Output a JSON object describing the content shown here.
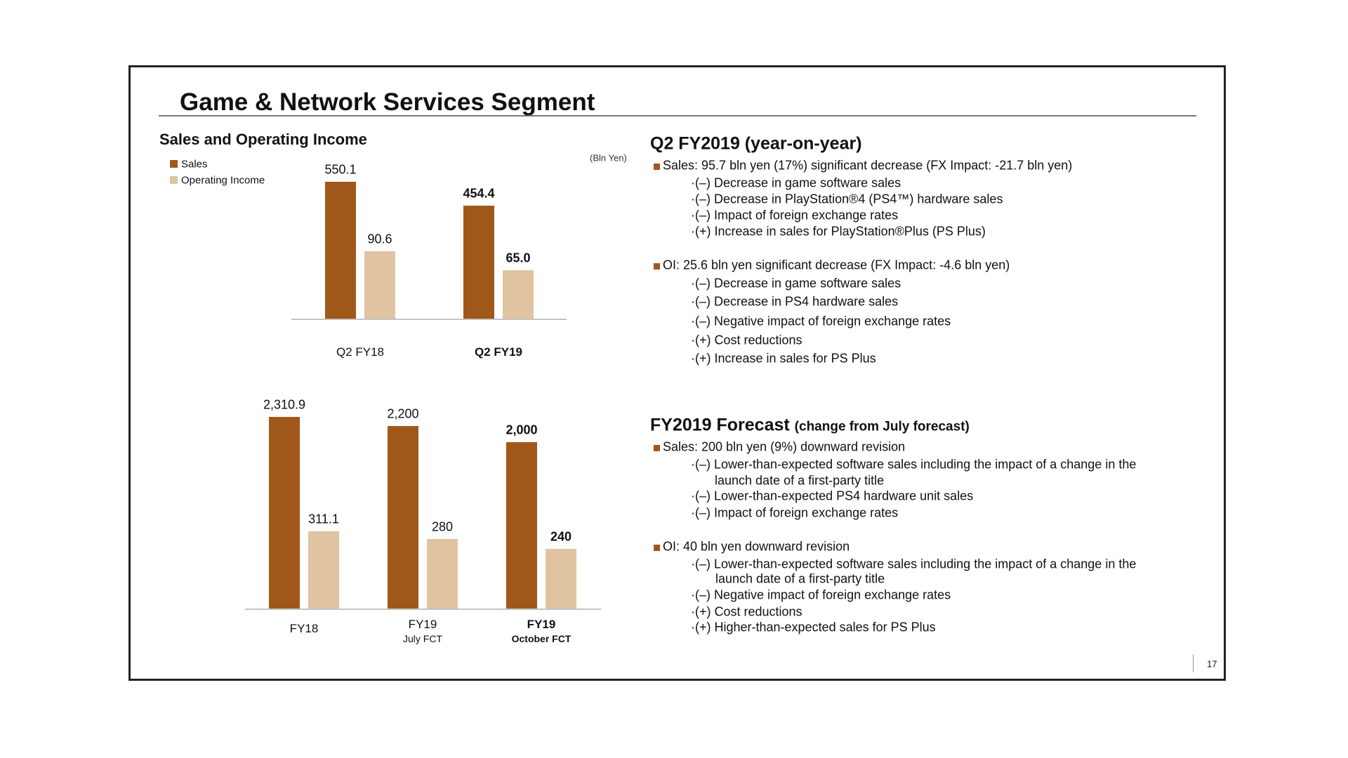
{
  "slide": {
    "title": "Game & Network Services Segment",
    "page_number": "17"
  },
  "colors": {
    "sales": "#A0581A",
    "operating_income": "#E0C3A0",
    "axis": "#C4C4C4",
    "bullet": "#A0581A"
  },
  "left": {
    "subtitle": "Sales and Operating Income",
    "unit": "(Bln Yen)",
    "legend": [
      "Sales",
      "Operating Income"
    ]
  },
  "chart_data": [
    {
      "type": "bar",
      "categories": [
        "Q2 FY18",
        "Q2 FY19"
      ],
      "category_bold": [
        false,
        true
      ],
      "series": [
        {
          "name": "Sales",
          "values": [
            550.1,
            454.4
          ],
          "labels": [
            "550.1",
            "454.4"
          ]
        },
        {
          "name": "Operating Income",
          "values": [
            90.6,
            65.0
          ],
          "labels": [
            "90.6",
            "65.0"
          ]
        }
      ],
      "unit": "(Bln Yen)",
      "grid": false,
      "legend": "top-left"
    },
    {
      "type": "bar",
      "categories": [
        "FY18",
        "FY19",
        "FY19"
      ],
      "category_sublabels": [
        "",
        "July FCT",
        "October FCT"
      ],
      "category_bold": [
        false,
        false,
        true
      ],
      "series": [
        {
          "name": "Sales",
          "values": [
            2310.9,
            2200,
            2000
          ],
          "labels": [
            "2,310.9",
            "2,200",
            "2,000"
          ]
        },
        {
          "name": "Operating Income",
          "values": [
            311.1,
            280,
            240
          ],
          "labels": [
            "311.1",
            "280",
            "240"
          ]
        }
      ],
      "grid": false
    }
  ],
  "right": {
    "q2": {
      "heading": "Q2 FY2019 (year-on-year)",
      "sales": {
        "headline": "Sales: 95.7 bln yen (17%) significant decrease   (FX Impact: -21.7 bln yen)",
        "items": [
          "·(–) Decrease in game software sales",
          "·(–) Decrease in PlayStation®4 (PS4™) hardware sales",
          "·(–) Impact of foreign exchange rates",
          "·(+) Increase in sales for PlayStation®Plus (PS Plus)"
        ]
      },
      "oi": {
        "headline": "OI: 25.6 bln yen significant decrease (FX Impact:  -4.6 bln yen)",
        "items": [
          "·(–) Decrease in game software sales",
          "·(–) Decrease in PS4 hardware sales",
          "·(–) Negative impact of foreign exchange rates",
          "·(+) Cost reductions",
          "·(+) Increase in sales for PS Plus"
        ]
      }
    },
    "forecast": {
      "heading": "FY2019 Forecast",
      "heading_note": "(change from July forecast)",
      "sales": {
        "headline": "Sales: 200 bln yen (9%) downward revision",
        "items": [
          "·(–) Lower-than-expected software sales including the impact of a change in the",
          "launch date of a first-party title",
          "·(–) Lower-than-expected PS4 hardware unit sales",
          "·(–) Impact of foreign exchange rates"
        ]
      },
      "oi": {
        "headline": "OI: 40 bln yen downward revision",
        "items": [
          "·(–) Lower-than-expected software sales including the impact of a change in the",
          "launch date of a first-party title",
          "·(–) Negative impact of foreign exchange rates",
          "·(+) Cost reductions",
          "·(+) Higher-than-expected sales for PS Plus"
        ]
      }
    }
  }
}
